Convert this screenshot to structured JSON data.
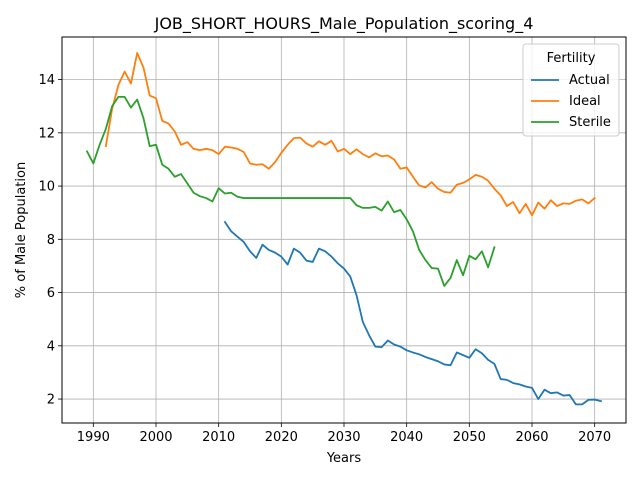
{
  "chart_data": {
    "type": "line",
    "title": "JOB_SHORT_HOURS_Male_Population_scoring_4",
    "xlabel": "Years",
    "ylabel": "% of Male Population",
    "xlim": [
      1985,
      2075
    ],
    "ylim": [
      1.1,
      15.6
    ],
    "xticks": [
      1990,
      2000,
      2010,
      2020,
      2030,
      2040,
      2050,
      2060,
      2070
    ],
    "yticks": [
      2,
      4,
      6,
      8,
      10,
      12,
      14
    ],
    "grid": true,
    "legend": {
      "title": "Fertility",
      "position": "top-right"
    },
    "series": [
      {
        "name": "Actual",
        "color": "#1f77b4",
        "points": [
          [
            2011,
            8.65
          ],
          [
            2012,
            8.3
          ],
          [
            2013,
            8.1
          ],
          [
            2014,
            7.9
          ],
          [
            2015,
            7.55
          ],
          [
            2016,
            7.3
          ],
          [
            2017,
            7.8
          ],
          [
            2018,
            7.6
          ],
          [
            2019,
            7.5
          ],
          [
            2020,
            7.35
          ],
          [
            2021,
            7.05
          ],
          [
            2022,
            7.65
          ],
          [
            2023,
            7.5
          ],
          [
            2024,
            7.2
          ],
          [
            2025,
            7.15
          ],
          [
            2026,
            7.65
          ],
          [
            2027,
            7.55
          ],
          [
            2028,
            7.35
          ],
          [
            2029,
            7.1
          ],
          [
            2030,
            6.9
          ],
          [
            2031,
            6.6
          ],
          [
            2032,
            5.9
          ],
          [
            2033,
            4.9
          ],
          [
            2034,
            4.4
          ],
          [
            2035,
            3.97
          ],
          [
            2036,
            3.95
          ],
          [
            2037,
            4.2
          ],
          [
            2038,
            4.05
          ],
          [
            2039,
            3.97
          ],
          [
            2040,
            3.83
          ],
          [
            2041,
            3.75
          ],
          [
            2042,
            3.68
          ],
          [
            2043,
            3.58
          ],
          [
            2044,
            3.5
          ],
          [
            2045,
            3.42
          ],
          [
            2046,
            3.3
          ],
          [
            2047,
            3.27
          ],
          [
            2048,
            3.75
          ],
          [
            2049,
            3.65
          ],
          [
            2050,
            3.55
          ],
          [
            2051,
            3.87
          ],
          [
            2052,
            3.72
          ],
          [
            2053,
            3.47
          ],
          [
            2054,
            3.32
          ],
          [
            2055,
            2.75
          ],
          [
            2056,
            2.72
          ],
          [
            2057,
            2.6
          ],
          [
            2058,
            2.55
          ],
          [
            2059,
            2.47
          ],
          [
            2060,
            2.42
          ],
          [
            2061,
            2.0
          ],
          [
            2062,
            2.35
          ],
          [
            2063,
            2.22
          ],
          [
            2064,
            2.25
          ],
          [
            2065,
            2.13
          ],
          [
            2066,
            2.15
          ],
          [
            2067,
            1.8
          ],
          [
            2068,
            1.8
          ],
          [
            2069,
            1.97
          ],
          [
            2070,
            1.98
          ],
          [
            2071,
            1.92
          ]
        ]
      },
      {
        "name": "Ideal",
        "color": "#ff7f0e",
        "points": [
          [
            1992,
            11.5
          ],
          [
            1993,
            12.9
          ],
          [
            1994,
            13.8
          ],
          [
            1995,
            14.3
          ],
          [
            1996,
            13.85
          ],
          [
            1997,
            15.0
          ],
          [
            1998,
            14.45
          ],
          [
            1999,
            13.4
          ],
          [
            2000,
            13.3
          ],
          [
            2001,
            12.45
          ],
          [
            2002,
            12.35
          ],
          [
            2003,
            12.05
          ],
          [
            2004,
            11.55
          ],
          [
            2005,
            11.65
          ],
          [
            2006,
            11.4
          ],
          [
            2007,
            11.35
          ],
          [
            2008,
            11.4
          ],
          [
            2009,
            11.35
          ],
          [
            2010,
            11.2
          ],
          [
            2011,
            11.48
          ],
          [
            2012,
            11.45
          ],
          [
            2013,
            11.4
          ],
          [
            2014,
            11.28
          ],
          [
            2015,
            10.85
          ],
          [
            2016,
            10.8
          ],
          [
            2017,
            10.82
          ],
          [
            2018,
            10.65
          ],
          [
            2019,
            10.9
          ],
          [
            2020,
            11.25
          ],
          [
            2021,
            11.55
          ],
          [
            2022,
            11.8
          ],
          [
            2023,
            11.82
          ],
          [
            2024,
            11.6
          ],
          [
            2025,
            11.48
          ],
          [
            2026,
            11.68
          ],
          [
            2027,
            11.55
          ],
          [
            2028,
            11.7
          ],
          [
            2029,
            11.3
          ],
          [
            2030,
            11.4
          ],
          [
            2031,
            11.2
          ],
          [
            2032,
            11.38
          ],
          [
            2033,
            11.2
          ],
          [
            2034,
            11.08
          ],
          [
            2035,
            11.23
          ],
          [
            2036,
            11.12
          ],
          [
            2037,
            11.15
          ],
          [
            2038,
            11.0
          ],
          [
            2039,
            10.65
          ],
          [
            2040,
            10.7
          ],
          [
            2041,
            10.35
          ],
          [
            2042,
            10.02
          ],
          [
            2043,
            9.95
          ],
          [
            2044,
            10.15
          ],
          [
            2045,
            9.9
          ],
          [
            2046,
            9.78
          ],
          [
            2047,
            9.75
          ],
          [
            2048,
            10.05
          ],
          [
            2049,
            10.12
          ],
          [
            2050,
            10.25
          ],
          [
            2051,
            10.42
          ],
          [
            2052,
            10.35
          ],
          [
            2053,
            10.2
          ],
          [
            2054,
            9.9
          ],
          [
            2055,
            9.65
          ],
          [
            2056,
            9.25
          ],
          [
            2057,
            9.4
          ],
          [
            2058,
            8.98
          ],
          [
            2059,
            9.33
          ],
          [
            2060,
            8.9
          ],
          [
            2061,
            9.38
          ],
          [
            2062,
            9.15
          ],
          [
            2063,
            9.47
          ],
          [
            2064,
            9.25
          ],
          [
            2065,
            9.35
          ],
          [
            2066,
            9.33
          ],
          [
            2067,
            9.45
          ],
          [
            2068,
            9.5
          ],
          [
            2069,
            9.35
          ],
          [
            2070,
            9.55
          ]
        ]
      },
      {
        "name": "Sterile",
        "color": "#2ca02c",
        "points": [
          [
            1989,
            11.3
          ],
          [
            1990,
            10.85
          ],
          [
            1991,
            11.55
          ],
          [
            1992,
            12.15
          ],
          [
            1993,
            13.0
          ],
          [
            1994,
            13.35
          ],
          [
            1995,
            13.35
          ],
          [
            1996,
            12.95
          ],
          [
            1997,
            13.25
          ],
          [
            1998,
            12.55
          ],
          [
            1999,
            11.5
          ],
          [
            2000,
            11.55
          ],
          [
            2001,
            10.8
          ],
          [
            2002,
            10.65
          ],
          [
            2003,
            10.35
          ],
          [
            2004,
            10.45
          ],
          [
            2005,
            10.1
          ],
          [
            2006,
            9.75
          ],
          [
            2007,
            9.62
          ],
          [
            2008,
            9.55
          ],
          [
            2009,
            9.42
          ],
          [
            2010,
            9.92
          ],
          [
            2011,
            9.72
          ],
          [
            2012,
            9.75
          ],
          [
            2013,
            9.6
          ],
          [
            2014,
            9.55
          ],
          [
            2015,
            9.55
          ],
          [
            2016,
            9.55
          ],
          [
            2017,
            9.55
          ],
          [
            2018,
            9.55
          ],
          [
            2019,
            9.55
          ],
          [
            2020,
            9.55
          ],
          [
            2021,
            9.55
          ],
          [
            2022,
            9.55
          ],
          [
            2023,
            9.55
          ],
          [
            2024,
            9.55
          ],
          [
            2025,
            9.55
          ],
          [
            2026,
            9.55
          ],
          [
            2027,
            9.55
          ],
          [
            2028,
            9.55
          ],
          [
            2029,
            9.55
          ],
          [
            2030,
            9.55
          ],
          [
            2031,
            9.55
          ],
          [
            2032,
            9.28
          ],
          [
            2033,
            9.18
          ],
          [
            2034,
            9.18
          ],
          [
            2035,
            9.22
          ],
          [
            2036,
            9.08
          ],
          [
            2037,
            9.42
          ],
          [
            2038,
            9.02
          ],
          [
            2039,
            9.1
          ],
          [
            2040,
            8.75
          ],
          [
            2041,
            8.3
          ],
          [
            2042,
            7.6
          ],
          [
            2043,
            7.22
          ],
          [
            2044,
            6.92
          ],
          [
            2045,
            6.9
          ],
          [
            2046,
            6.25
          ],
          [
            2047,
            6.55
          ],
          [
            2048,
            7.22
          ],
          [
            2049,
            6.65
          ],
          [
            2050,
            7.38
          ],
          [
            2051,
            7.25
          ],
          [
            2052,
            7.55
          ],
          [
            2053,
            6.95
          ],
          [
            2054,
            7.7
          ]
        ]
      }
    ]
  }
}
